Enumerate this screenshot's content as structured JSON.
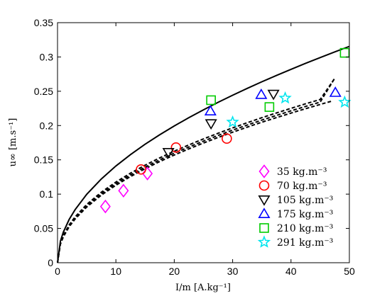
{
  "chart_data": {
    "type": "scatter",
    "xlabel": "I/m  [A.kg⁻¹]",
    "ylabel": "u∞  [m.s⁻¹]",
    "xlim": [
      0,
      50
    ],
    "ylim": [
      0,
      0.35
    ],
    "xticks": [
      0,
      10,
      20,
      30,
      40,
      50
    ],
    "xtick_labels": [
      "0",
      "10",
      "20",
      "30",
      "40",
      "50"
    ],
    "yticks": [
      0,
      0.05,
      0.1,
      0.15,
      0.2,
      0.25,
      0.3,
      0.35
    ],
    "ytick_labels": [
      "0",
      "0.05",
      "0.1",
      "0.15",
      "0.2",
      "0.25",
      "0.3",
      "0.35"
    ],
    "grid": false,
    "legend_position": "bottom-right",
    "series": [
      {
        "name": "35 kg.m⁻³",
        "marker": "diamond",
        "color": "#ff00ff",
        "x": [
          8.2,
          11.3,
          15.4
        ],
        "y": [
          0.082,
          0.105,
          0.13
        ]
      },
      {
        "name": "70 kg.m⁻³",
        "marker": "circle",
        "color": "#ff0000",
        "x": [
          14.3,
          20.3,
          29.0
        ],
        "y": [
          0.136,
          0.168,
          0.181
        ]
      },
      {
        "name": "105 kg.m⁻³",
        "marker": "triangle-down",
        "color": "#000000",
        "x": [
          19.0,
          26.3,
          37.0
        ],
        "y": [
          0.161,
          0.203,
          0.246
        ]
      },
      {
        "name": "175 kg.m⁻³",
        "marker": "triangle-up",
        "color": "#0000ff",
        "x": [
          26.2,
          34.9,
          47.6
        ],
        "y": [
          0.221,
          0.245,
          0.248
        ]
      },
      {
        "name": "210 kg.m⁻³",
        "marker": "square",
        "color": "#00cc00",
        "x": [
          26.3,
          36.3,
          49.2
        ],
        "y": [
          0.237,
          0.227,
          0.306
        ]
      },
      {
        "name": "291 kg.m⁻³",
        "marker": "star",
        "color": "#00e5ee",
        "x": [
          30.0,
          39.0,
          49.2
        ],
        "y": [
          0.205,
          0.24,
          0.234
        ]
      }
    ],
    "curves": [
      {
        "style": "solid",
        "color": "#000000",
        "x": [
          0,
          0.5,
          1,
          2,
          3,
          5,
          7.5,
          10,
          12.5,
          15,
          17.5,
          20,
          22.5,
          25,
          27.5,
          30,
          32.5,
          35,
          37.5,
          40,
          42.5,
          45,
          47.5,
          50
        ],
        "y": [
          0,
          0.0315,
          0.0446,
          0.0631,
          0.0772,
          0.0997,
          0.1221,
          0.141,
          0.1577,
          0.1727,
          0.1865,
          0.1994,
          0.2115,
          0.2229,
          0.2338,
          0.2442,
          0.2542,
          0.2638,
          0.273,
          0.282,
          0.2907,
          0.2991,
          0.3074,
          0.3154
        ]
      },
      {
        "style": "dashed",
        "color": "#000000",
        "x": [
          0,
          0.5,
          1,
          2,
          3,
          5,
          7.5,
          10,
          12.5,
          15,
          17.5,
          20,
          22.5,
          25,
          27.5,
          30,
          32.5,
          35,
          37.5,
          40,
          42.5,
          45,
          47.5
        ],
        "y": [
          0,
          0.028,
          0.0388,
          0.0538,
          0.0652,
          0.0831,
          0.1006,
          0.1152,
          0.128,
          0.1394,
          0.1499,
          0.1597,
          0.1687,
          0.1773,
          0.1855,
          0.1933,
          0.2007,
          0.2079,
          0.2148,
          0.2215,
          0.2279,
          0.2342,
          0.269
        ]
      },
      {
        "style": "dashed",
        "color": "#000000",
        "x": [
          0,
          0.5,
          1,
          2,
          3,
          5,
          7.5,
          10,
          12.5,
          15,
          17.5,
          20,
          22.5,
          25,
          27.5,
          30,
          32.5,
          35,
          37.5,
          40,
          42.5,
          45,
          47
        ],
        "y": [
          0,
          0.0272,
          0.0377,
          0.0524,
          0.0636,
          0.0812,
          0.0985,
          0.1129,
          0.1256,
          0.137,
          0.1474,
          0.157,
          0.166,
          0.1745,
          0.1826,
          0.1903,
          0.1977,
          0.2048,
          0.2116,
          0.2182,
          0.2246,
          0.2308,
          0.2356
        ]
      },
      {
        "style": "dashed",
        "color": "#000000",
        "x": [
          0,
          0.5,
          1,
          2,
          3,
          5,
          7.5,
          10,
          12.5,
          15,
          17.5,
          20,
          22.5,
          25,
          27.5,
          30,
          32.5,
          35,
          37.5,
          40,
          42.5,
          45,
          47.5
        ],
        "y": [
          0,
          0.0288,
          0.0399,
          0.0552,
          0.0668,
          0.085,
          0.1028,
          0.1176,
          0.1306,
          0.1422,
          0.1528,
          0.1626,
          0.1718,
          0.1805,
          0.1887,
          0.1966,
          0.2041,
          0.2114,
          0.2184,
          0.2251,
          0.2317,
          0.238,
          0.269
        ]
      }
    ]
  }
}
